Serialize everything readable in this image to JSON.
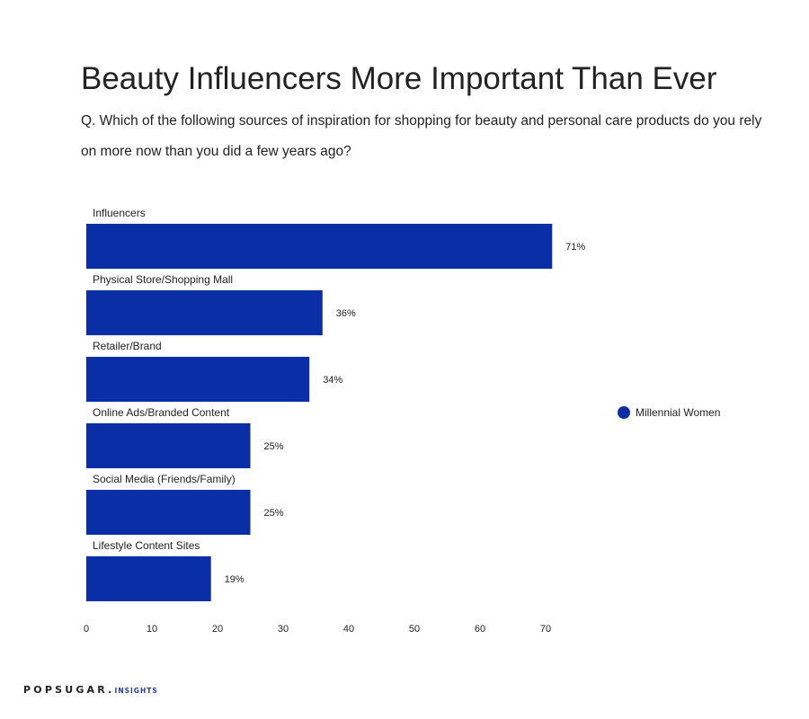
{
  "title": "Beauty Influencers More Important Than Ever",
  "subtitle": "Q. Which of the following sources of inspiration for shopping for beauty and personal care products do you rely on more now than you did a few years ago?",
  "footer": {
    "brand": "POPSUGAR.",
    "sub": "INSIGHTS"
  },
  "colors": {
    "bar": "#0a2ea5",
    "text": "#222222"
  },
  "chart_data": {
    "type": "bar",
    "orientation": "horizontal",
    "categories": [
      "Influencers",
      "Physical Store/Shopping Mall",
      "Retailer/Brand",
      "Online Ads/Branded Content",
      "Social Media (Friends/Family)",
      "Lifestyle Content Sites"
    ],
    "series": [
      {
        "name": "Millennial Women",
        "values": [
          71,
          36,
          34,
          25,
          25,
          19
        ],
        "labels": [
          "71%",
          "36%",
          "34%",
          "25%",
          "25%",
          "19%"
        ]
      }
    ],
    "x_ticks": [
      0,
      10,
      20,
      30,
      40,
      50,
      60,
      70
    ],
    "xlim": [
      0,
      70
    ],
    "grid": false,
    "legend_position": "right"
  }
}
